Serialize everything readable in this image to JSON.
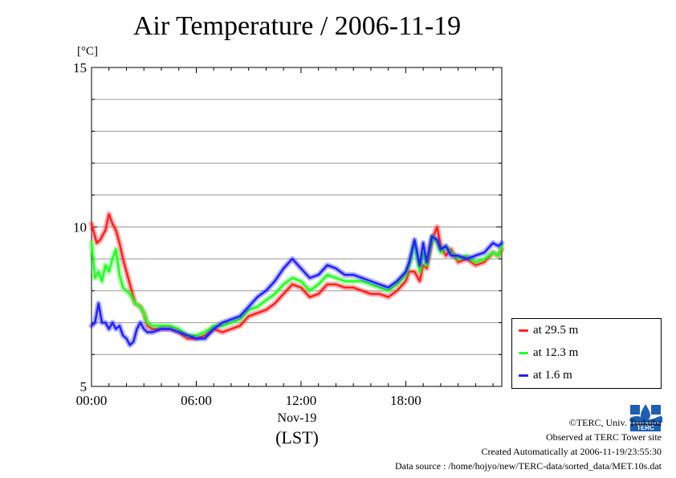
{
  "chart_data": {
    "type": "line",
    "title": "Air Temperature / 2006-11-19",
    "ylabel": "[°C]",
    "ylim": [
      5,
      15
    ],
    "yticks": [
      "5",
      "10",
      "15"
    ],
    "xlim_hours": [
      0,
      23.5
    ],
    "xticks": [
      "00:00",
      "06:00",
      "12:00",
      "18:00"
    ],
    "xlabel_date": "Nov-19",
    "xlabel_tz": "(LST)",
    "grid": true,
    "legend_position": "right-bottom",
    "series": [
      {
        "name": "at 29.5 m",
        "color": "#ff2020",
        "x": [
          0,
          0.3,
          0.5,
          0.8,
          1.0,
          1.2,
          1.4,
          1.6,
          1.8,
          2.0,
          2.2,
          2.5,
          2.8,
          3.0,
          3.2,
          3.5,
          4.0,
          4.5,
          5.0,
          5.5,
          6.0,
          6.5,
          7.0,
          7.5,
          8.0,
          8.5,
          9.0,
          9.5,
          10.0,
          10.5,
          11.0,
          11.5,
          12.0,
          12.5,
          13.0,
          13.5,
          14.0,
          14.5,
          15.0,
          15.5,
          16.0,
          16.5,
          17.0,
          17.5,
          18.0,
          18.2,
          18.5,
          18.8,
          19.0,
          19.2,
          19.5,
          19.8,
          20.0,
          20.3,
          20.6,
          21.0,
          21.5,
          22.0,
          22.5,
          23.0,
          23.3,
          23.5
        ],
        "y": [
          10.1,
          9.5,
          9.6,
          9.9,
          10.4,
          10.1,
          9.9,
          9.5,
          9.0,
          8.6,
          8.2,
          7.6,
          7.5,
          7.3,
          6.9,
          6.8,
          6.8,
          6.8,
          6.7,
          6.5,
          6.5,
          6.6,
          6.8,
          6.7,
          6.8,
          6.9,
          7.2,
          7.3,
          7.4,
          7.6,
          7.9,
          8.2,
          8.1,
          7.8,
          7.9,
          8.2,
          8.2,
          8.1,
          8.1,
          8.0,
          7.9,
          7.9,
          7.8,
          8.0,
          8.3,
          8.6,
          8.6,
          8.3,
          8.8,
          8.7,
          9.6,
          10.0,
          9.4,
          9.1,
          9.3,
          8.9,
          9.0,
          8.8,
          8.9,
          9.2,
          9.1,
          9.3
        ]
      },
      {
        "name": "at 12.3 m",
        "color": "#20ff20",
        "x": [
          0,
          0.2,
          0.4,
          0.6,
          0.8,
          1.0,
          1.2,
          1.4,
          1.6,
          1.8,
          2.0,
          2.2,
          2.5,
          2.8,
          3.0,
          3.2,
          3.5,
          4.0,
          4.5,
          5.0,
          5.5,
          6.0,
          6.5,
          7.0,
          7.5,
          8.0,
          8.5,
          9.0,
          9.5,
          10.0,
          10.5,
          11.0,
          11.5,
          12.0,
          12.5,
          13.0,
          13.5,
          14.0,
          14.5,
          15.0,
          15.5,
          16.0,
          16.5,
          17.0,
          17.5,
          18.0,
          18.2,
          18.5,
          18.8,
          19.0,
          19.2,
          19.5,
          19.8,
          20.0,
          20.3,
          20.6,
          21.0,
          21.5,
          22.0,
          22.5,
          23.0,
          23.3,
          23.5
        ],
        "y": [
          9.5,
          8.4,
          8.6,
          8.3,
          8.8,
          8.6,
          9.0,
          9.3,
          8.5,
          8.1,
          8.0,
          7.9,
          7.6,
          7.5,
          7.3,
          7.0,
          6.9,
          6.9,
          6.9,
          6.8,
          6.6,
          6.6,
          6.7,
          6.9,
          6.9,
          7.0,
          7.1,
          7.4,
          7.5,
          7.7,
          7.9,
          8.2,
          8.4,
          8.3,
          8.0,
          8.2,
          8.5,
          8.4,
          8.3,
          8.3,
          8.3,
          8.2,
          8.1,
          8.0,
          8.2,
          8.5,
          8.8,
          9.5,
          8.6,
          9.2,
          8.8,
          9.7,
          9.5,
          9.2,
          9.4,
          9.2,
          9.0,
          9.1,
          8.9,
          9.0,
          9.2,
          9.1,
          9.4
        ]
      },
      {
        "name": "at 1.6 m",
        "color": "#2020ff",
        "x": [
          0,
          0.2,
          0.4,
          0.6,
          0.8,
          1.0,
          1.2,
          1.4,
          1.6,
          1.8,
          2.0,
          2.2,
          2.4,
          2.6,
          2.8,
          3.0,
          3.2,
          3.5,
          4.0,
          4.5,
          5.0,
          5.5,
          6.0,
          6.5,
          7.0,
          7.5,
          8.0,
          8.5,
          9.0,
          9.5,
          10.0,
          10.5,
          11.0,
          11.5,
          12.0,
          12.5,
          13.0,
          13.5,
          14.0,
          14.5,
          15.0,
          15.5,
          16.0,
          16.5,
          17.0,
          17.5,
          18.0,
          18.2,
          18.5,
          18.8,
          19.0,
          19.2,
          19.5,
          19.8,
          20.0,
          20.3,
          20.6,
          21.0,
          21.5,
          22.0,
          22.5,
          23.0,
          23.3,
          23.5
        ],
        "y": [
          6.9,
          7.0,
          7.6,
          7.0,
          7.0,
          6.8,
          7.0,
          6.8,
          6.9,
          6.6,
          6.5,
          6.3,
          6.4,
          6.8,
          7.0,
          6.8,
          6.7,
          6.7,
          6.8,
          6.8,
          6.7,
          6.6,
          6.5,
          6.5,
          6.8,
          7.0,
          7.1,
          7.2,
          7.5,
          7.8,
          8.0,
          8.3,
          8.7,
          9.0,
          8.7,
          8.4,
          8.5,
          8.8,
          8.7,
          8.5,
          8.5,
          8.4,
          8.3,
          8.2,
          8.1,
          8.3,
          8.6,
          8.9,
          9.6,
          8.8,
          9.5,
          8.9,
          9.7,
          9.6,
          9.3,
          9.4,
          9.1,
          9.1,
          9.0,
          9.1,
          9.2,
          9.5,
          9.4,
          9.5
        ]
      }
    ]
  },
  "footer": {
    "copyright": "©TERC, Univ. Tsukuba",
    "observed": "Observed at TERC Tower site",
    "created": "Created Automatically at 2006-11-19/23:55:30",
    "source": "Data source : /home/hojyo/new/TERC-data/sorted_data/MET.10s.dat"
  },
  "logo": {
    "text": "TERC"
  }
}
